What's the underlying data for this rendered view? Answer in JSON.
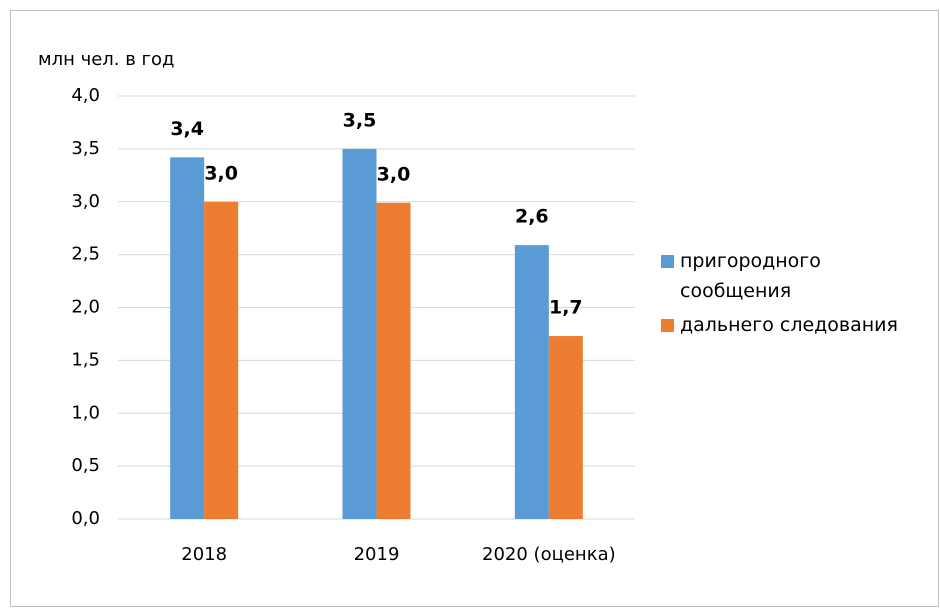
{
  "chart_data": {
    "type": "bar",
    "y_label": "млн чел.  в год",
    "categories": [
      "2018",
      "2019",
      "2020 (оценка)"
    ],
    "series": [
      {
        "name": "пригородного сообщения",
        "color": "#5b9bd5",
        "values": [
          3.42,
          3.5,
          2.59
        ],
        "value_labels": [
          "3,4",
          "3,5",
          "2,6"
        ]
      },
      {
        "name": "дальнего следования",
        "color": "#ed7d31",
        "values": [
          3.0,
          2.99,
          1.73
        ],
        "value_labels": [
          "3,0",
          "3,0",
          "1,7"
        ]
      }
    ],
    "ylim": [
      0,
      4
    ],
    "yticks": [
      {
        "value": 0,
        "label": "0,0"
      },
      {
        "value": 0.5,
        "label": "0,5"
      },
      {
        "value": 1,
        "label": "1,0"
      },
      {
        "value": 1.5,
        "label": "1,5"
      },
      {
        "value": 2,
        "label": "2,0"
      },
      {
        "value": 2.5,
        "label": "2,5"
      },
      {
        "value": 3,
        "label": "3,0"
      },
      {
        "value": 3.5,
        "label": "3,5"
      },
      {
        "value": 4,
        "label": "4,0"
      }
    ],
    "grid": true,
    "legend": "right"
  }
}
